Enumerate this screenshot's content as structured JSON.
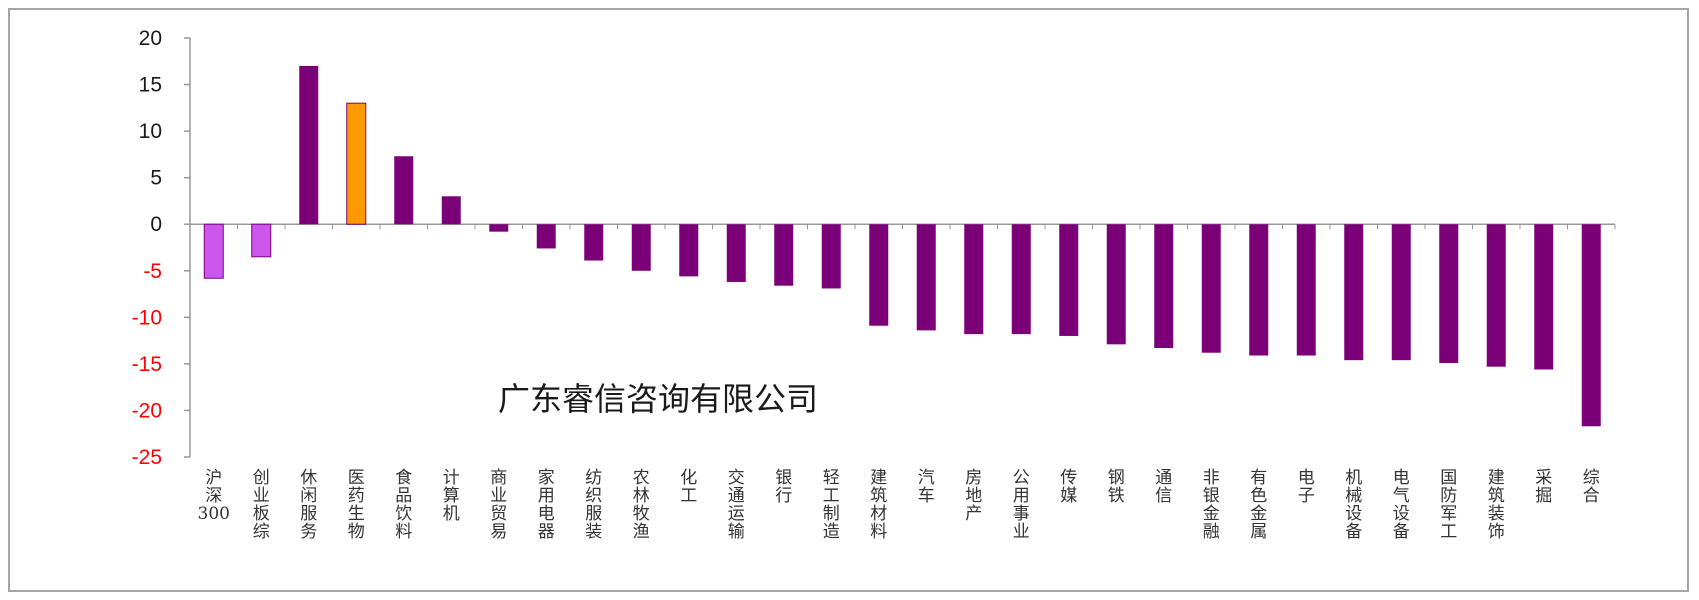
{
  "watermark": "广东睿信咨询有限公司",
  "colors": {
    "bar_default": "#7b0078",
    "bar_index": "#cc55ee",
    "bar_highlight": "#ff9900",
    "tick_positive": "#1a1a1a",
    "tick_negative": "#ff0000",
    "axis": "#999999"
  },
  "chart_data": {
    "type": "bar",
    "ylim": [
      -25,
      20
    ],
    "yticks": [
      20,
      15,
      10,
      5,
      0,
      -5,
      -10,
      -15,
      -20,
      -25
    ],
    "grid": false,
    "categories": [
      "沪深300",
      "创业板综",
      "休闲服务",
      "医药生物",
      "食品饮料",
      "计算机",
      "商业贸易",
      "家用电器",
      "纺织服装",
      "农林牧渔",
      "化工",
      "交通运输",
      "银行",
      "轻工制造",
      "建筑材料",
      "汽车",
      "房地产",
      "公用事业",
      "传媒",
      "钢铁",
      "通信",
      "非银金融",
      "有色金属",
      "电子",
      "机械设备",
      "电气设备",
      "国防军工",
      "建筑装饰",
      "采掘",
      "综合"
    ],
    "values": [
      -5.8,
      -3.5,
      17.0,
      13.0,
      7.3,
      3.0,
      -0.8,
      -2.6,
      -3.9,
      -5.0,
      -5.6,
      -6.2,
      -6.6,
      -6.9,
      -10.9,
      -11.4,
      -11.8,
      -11.8,
      -12.0,
      -12.9,
      -13.3,
      -13.8,
      -14.1,
      -14.1,
      -14.6,
      -14.6,
      -14.9,
      -15.3,
      -15.6,
      -21.7
    ],
    "bar_kinds": [
      "index",
      "index",
      "default",
      "highlight",
      "default",
      "default",
      "default",
      "default",
      "default",
      "default",
      "default",
      "default",
      "default",
      "default",
      "default",
      "default",
      "default",
      "default",
      "default",
      "default",
      "default",
      "default",
      "default",
      "default",
      "default",
      "default",
      "default",
      "default",
      "default",
      "default"
    ]
  }
}
